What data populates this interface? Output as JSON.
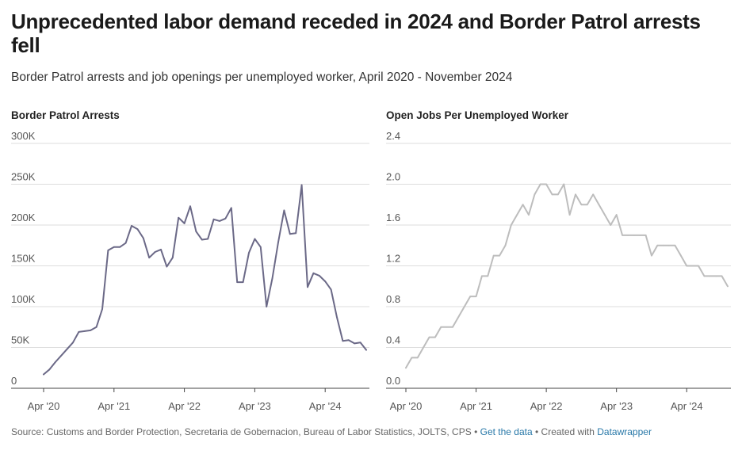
{
  "title": "Unprecedented labor demand receded in 2024 and Border Patrol arrests fell",
  "subtitle": "Border Patrol arrests and job openings per unemployed worker, April 2020 - November 2024",
  "footer": {
    "source": "Source: Customs and Border Protection, Secretaria de Gobernacion, Bureau of Labor Statistics, JOLTS, CPS",
    "sep1": " • ",
    "get_data": "Get the data",
    "sep2": " • Created with ",
    "created_with": "Datawrapper"
  },
  "colors": {
    "arrests": "#6b6987",
    "jobs": "#bdbdbd",
    "grid": "#dddddd",
    "axis": "#444444"
  },
  "chart_data": [
    {
      "type": "line",
      "title": "Border Patrol Arrests",
      "x_unit": "month",
      "x_start": "2020-04",
      "x_ticks": [
        {
          "label": "Apr '20",
          "month_index": 0
        },
        {
          "label": "Apr '21",
          "month_index": 12
        },
        {
          "label": "Apr '22",
          "month_index": 24
        },
        {
          "label": "Apr '23",
          "month_index": 36
        },
        {
          "label": "Apr '24",
          "month_index": 48
        }
      ],
      "y_ticks": [
        {
          "label": "0",
          "value": 0
        },
        {
          "label": "50K",
          "value": 50000
        },
        {
          "label": "100K",
          "value": 100000
        },
        {
          "label": "150K",
          "value": 150000
        },
        {
          "label": "200K",
          "value": 200000
        },
        {
          "label": "250K",
          "value": 250000
        },
        {
          "label": "300K",
          "value": 300000
        }
      ],
      "ylim": [
        0,
        300000
      ],
      "series": [
        {
          "values": [
            17000,
            23000,
            32000,
            40000,
            48000,
            56000,
            69000,
            70000,
            71000,
            75000,
            97000,
            169000,
            173000,
            173000,
            178000,
            199000,
            195000,
            184000,
            160000,
            167000,
            170000,
            149000,
            160000,
            209000,
            202000,
            223000,
            192000,
            182000,
            183000,
            207000,
            205000,
            208000,
            221000,
            130000,
            130000,
            166000,
            183000,
            173000,
            100000,
            135000,
            179000,
            218000,
            189000,
            190000,
            249000,
            124000,
            141000,
            138000,
            131000,
            121000,
            87000,
            58000,
            59000,
            55000,
            56000,
            47000
          ]
        }
      ]
    },
    {
      "type": "line",
      "title": "Open Jobs Per Unemployed Worker",
      "x_unit": "month",
      "x_start": "2020-04",
      "x_ticks": [
        {
          "label": "Apr '20",
          "month_index": 0
        },
        {
          "label": "Apr '21",
          "month_index": 12
        },
        {
          "label": "Apr '22",
          "month_index": 24
        },
        {
          "label": "Apr '23",
          "month_index": 36
        },
        {
          "label": "Apr '24",
          "month_index": 48
        }
      ],
      "y_ticks": [
        {
          "label": "0.0",
          "value": 0
        },
        {
          "label": "0.4",
          "value": 0.4
        },
        {
          "label": "0.8",
          "value": 0.8
        },
        {
          "label": "1.2",
          "value": 1.2
        },
        {
          "label": "1.6",
          "value": 1.6
        },
        {
          "label": "2.0",
          "value": 2.0
        },
        {
          "label": "2.4",
          "value": 2.4
        }
      ],
      "ylim": [
        0,
        2.4
      ],
      "series": [
        {
          "values": [
            0.2,
            0.3,
            0.3,
            0.4,
            0.5,
            0.5,
            0.6,
            0.6,
            0.6,
            0.7,
            0.8,
            0.9,
            0.9,
            1.1,
            1.1,
            1.3,
            1.3,
            1.4,
            1.6,
            1.7,
            1.8,
            1.7,
            1.9,
            2.0,
            2.0,
            1.9,
            1.9,
            2.0,
            1.7,
            1.9,
            1.8,
            1.8,
            1.9,
            1.8,
            1.7,
            1.6,
            1.7,
            1.5,
            1.5,
            1.5,
            1.5,
            1.5,
            1.3,
            1.4,
            1.4,
            1.4,
            1.4,
            1.3,
            1.2,
            1.2,
            1.2,
            1.1,
            1.1,
            1.1,
            1.1,
            1.0
          ]
        }
      ]
    }
  ]
}
